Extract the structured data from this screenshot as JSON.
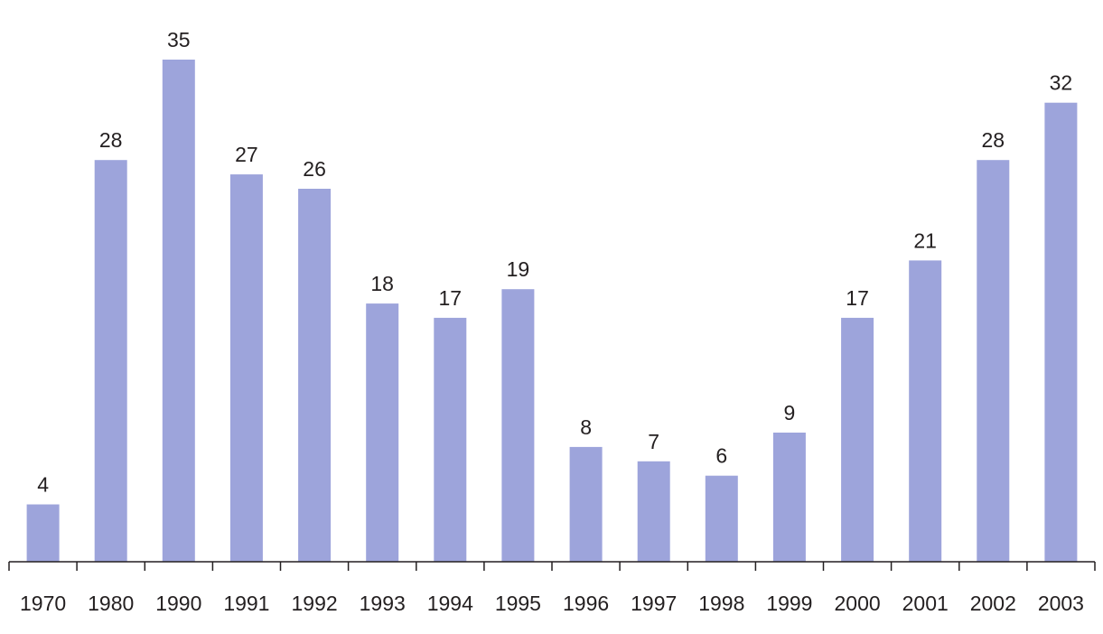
{
  "chart_data": {
    "type": "bar",
    "title": "",
    "xlabel": "",
    "ylabel": "",
    "categories": [
      "1970",
      "1980",
      "1990",
      "1991",
      "1992",
      "1993",
      "1994",
      "1995",
      "1996",
      "1997",
      "1998",
      "1999",
      "2000",
      "2001",
      "2002",
      "2003"
    ],
    "values": [
      4,
      28,
      35,
      27,
      26,
      18,
      17,
      19,
      8,
      7,
      6,
      9,
      17,
      21,
      28,
      32
    ],
    "data_labels": [
      "4",
      "28",
      "35",
      "27",
      "26",
      "18",
      "17",
      "19",
      "8",
      "7",
      "6",
      "9",
      "17",
      "21",
      "28",
      "32"
    ],
    "ylim": [
      0,
      35
    ],
    "grid": false,
    "legend": "none",
    "bar_color": "#9da4db",
    "axis_color": "#231f20"
  }
}
